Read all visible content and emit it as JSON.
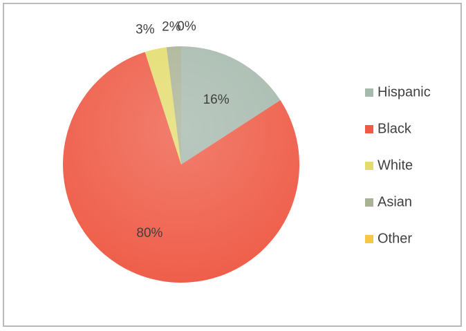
{
  "chart_data": {
    "type": "pie",
    "categories": [
      "Hispanic",
      "Black",
      "White",
      "Asian",
      "Other"
    ],
    "values": [
      16,
      80,
      3,
      2,
      0
    ],
    "labels": [
      "16%",
      "80%",
      "3%",
      "2%",
      "0%"
    ],
    "colors": [
      "#a6b9ad",
      "#ee5a45",
      "#e3dc6c",
      "#a9b294",
      "#f5c744"
    ],
    "title": "",
    "legend": "right"
  }
}
